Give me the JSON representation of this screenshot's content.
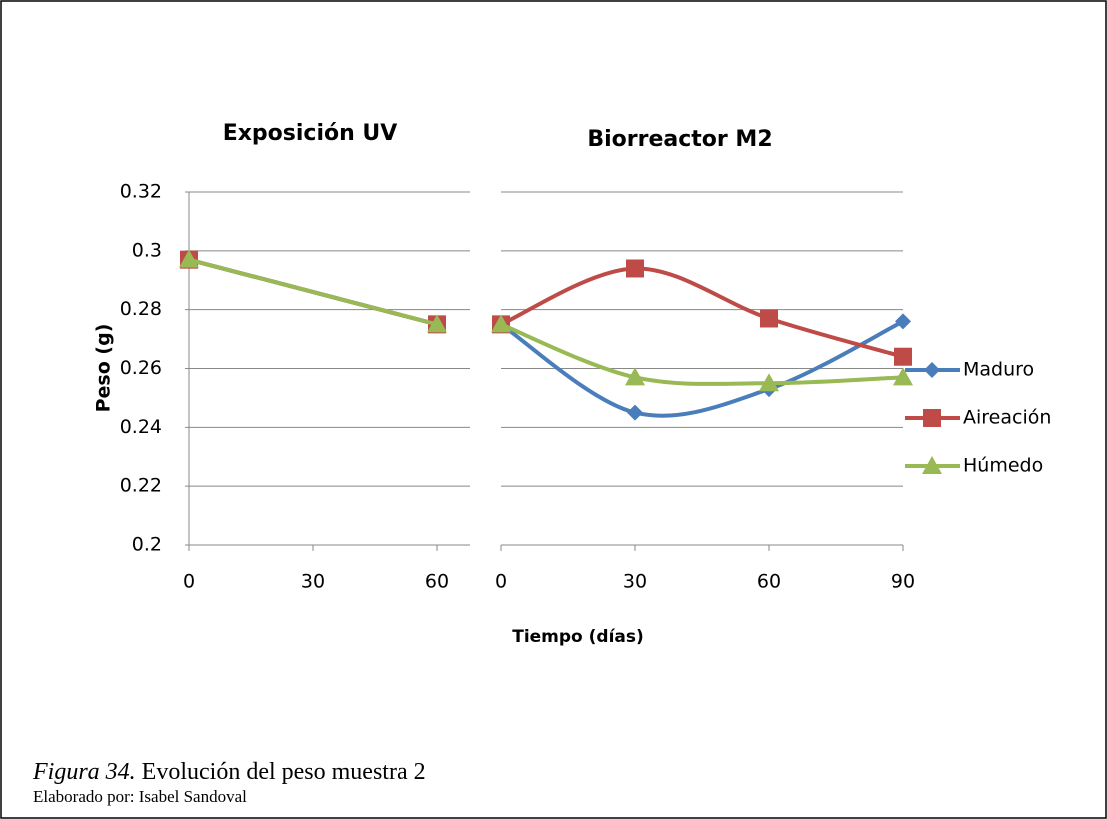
{
  "chart_data": [
    {
      "type": "line",
      "title": "Exposición UV",
      "ylabel": "Peso (g)",
      "x": [
        0,
        60
      ],
      "xlim": [
        0,
        60
      ],
      "xticks": [
        0,
        30,
        60
      ],
      "ylim": [
        0.2,
        0.32
      ],
      "yticks": [
        0.2,
        0.22,
        0.24,
        0.26,
        0.28,
        0.3,
        0.32
      ],
      "grid": true,
      "smooth": false,
      "series": [
        {
          "color": "#4a7ebb",
          "marker": "diamond",
          "values": [
            0.297,
            0.275
          ]
        },
        {
          "color": "#be4b48",
          "marker": "square",
          "values": [
            0.297,
            0.275
          ]
        },
        {
          "color": "#98b954",
          "marker": "triangle",
          "values": [
            0.297,
            0.275
          ]
        }
      ]
    },
    {
      "type": "line",
      "title": "Biorreactor M2",
      "xlabel": "Tiempo (días)",
      "x": [
        0,
        30,
        60,
        90
      ],
      "xlim": [
        0,
        90
      ],
      "xticks": [
        0,
        30,
        60,
        90
      ],
      "ylim": [
        0.2,
        0.32
      ],
      "grid": true,
      "smooth": true,
      "legend": "right",
      "series": [
        {
          "name": "Maduro",
          "color": "#4a7ebb",
          "marker": "diamond",
          "values": [
            0.275,
            0.245,
            0.253,
            0.276
          ]
        },
        {
          "name": "Aireación",
          "color": "#be4b48",
          "marker": "square",
          "values": [
            0.275,
            0.294,
            0.277,
            0.264
          ]
        },
        {
          "name": "Húmedo",
          "color": "#98b954",
          "marker": "triangle",
          "values": [
            0.275,
            0.257,
            0.255,
            0.257
          ]
        }
      ]
    }
  ],
  "caption": {
    "label": "Figura 34.",
    "text": "Evolución del peso muestra 2",
    "credit": "Elaborado por: Isabel Sandoval"
  }
}
